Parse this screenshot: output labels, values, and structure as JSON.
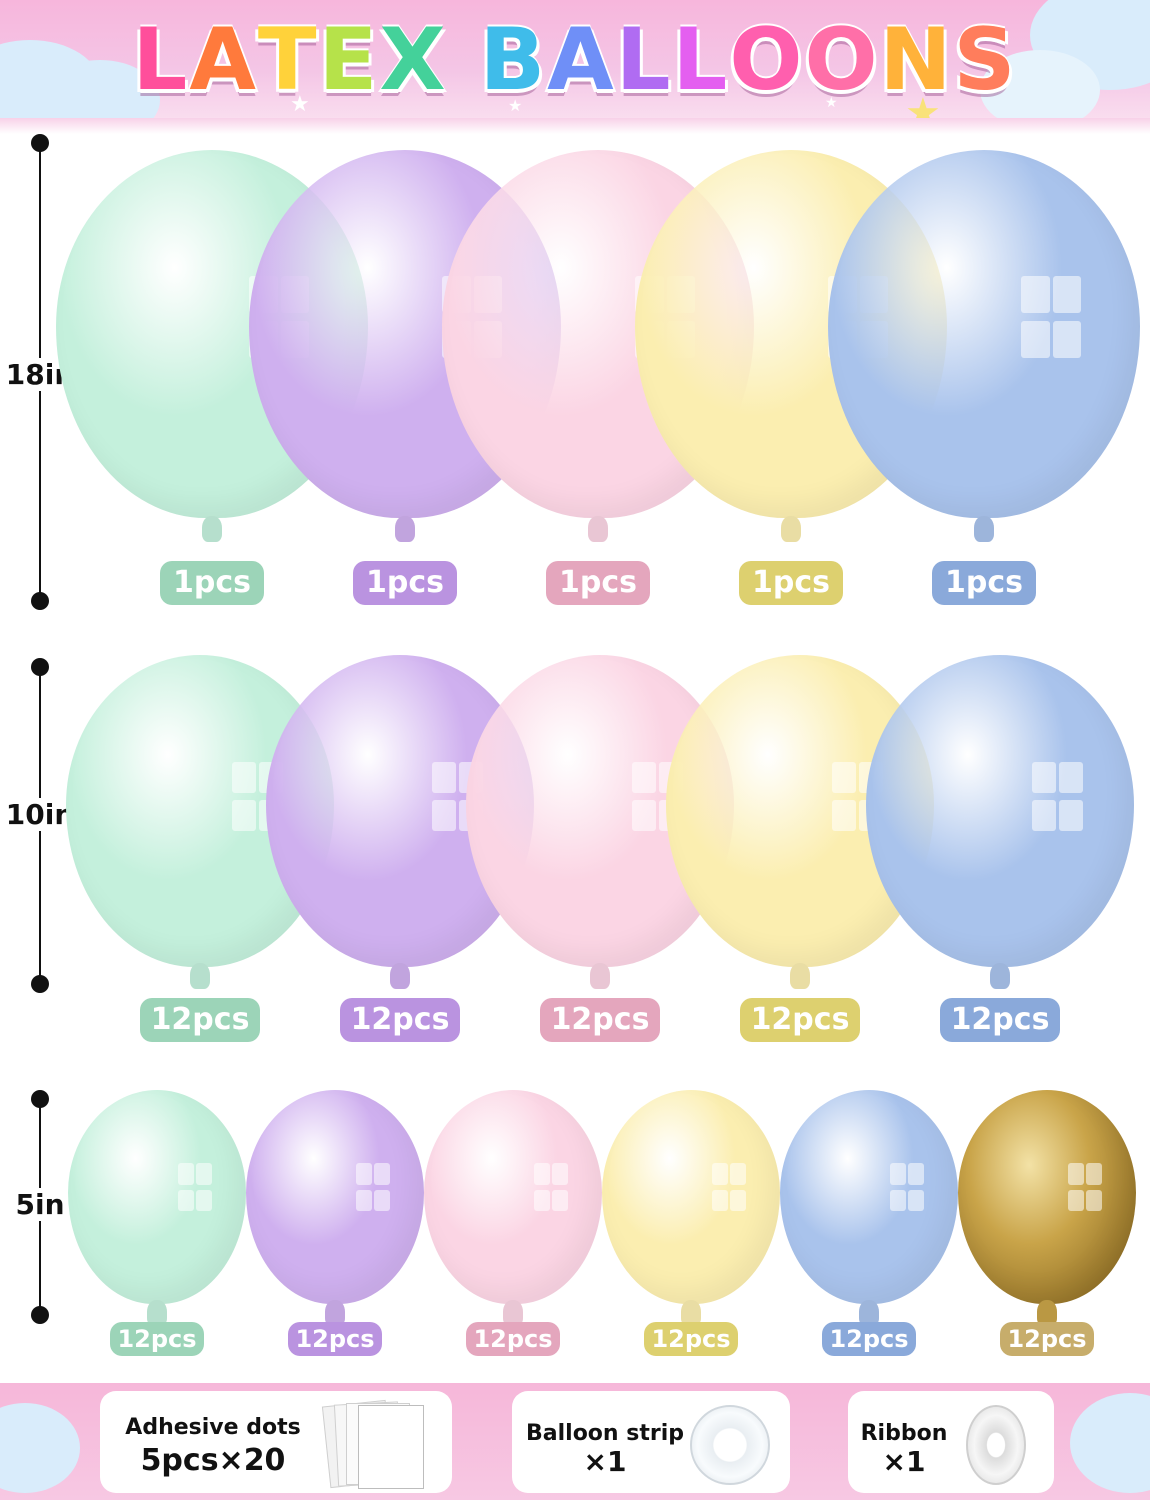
{
  "banner": {
    "title_word1": "LATEX",
    "title_word2": "BALLOONS",
    "title_colors": [
      "#ff4f9b",
      "#ff7a3c",
      "#ffd23a",
      "#b6e24a",
      "#44d19a",
      "#3fbcea",
      "#6f8ff7",
      "#b06cf2",
      "#e45ff0",
      "#ff5fae",
      "#ff6fa8",
      "#ffb23a",
      "#ff7d5c"
    ]
  },
  "sizes": [
    {
      "label": "18in",
      "count_label": "1pcs"
    },
    {
      "label": "10in",
      "count_label": "12pcs"
    },
    {
      "label": "5in",
      "count_label": "12pcs"
    }
  ],
  "colors": [
    {
      "name": "mint",
      "balloon": "#c4f0dc",
      "pill": "#9cd4b8"
    },
    {
      "name": "lavender",
      "balloon": "#cfb0ef",
      "pill": "#ba93e0"
    },
    {
      "name": "pink",
      "balloon": "#fbd5e4",
      "pill": "#e4a6bd"
    },
    {
      "name": "yellow",
      "balloon": "#fbeeb0",
      "pill": "#ddd06f"
    },
    {
      "name": "blue",
      "balloon": "#a9c3ec",
      "pill": "#8aa9da"
    },
    {
      "name": "gold",
      "balloon": "#c8a348",
      "pill": "#c7ad6b"
    }
  ],
  "row1": [
    "1pcs",
    "1pcs",
    "1pcs",
    "1pcs",
    "1pcs"
  ],
  "row2": [
    "12pcs",
    "12pcs",
    "12pcs",
    "12pcs",
    "12pcs"
  ],
  "row3": [
    "12pcs",
    "12pcs",
    "12pcs",
    "12pcs",
    "12pcs",
    "12pcs"
  ],
  "accessories": [
    {
      "name": "Adhesive dots",
      "qty": "5pcs×20"
    },
    {
      "name": "Balloon strip",
      "qty": "×1"
    },
    {
      "name": "Ribbon",
      "qty": "×1"
    }
  ]
}
